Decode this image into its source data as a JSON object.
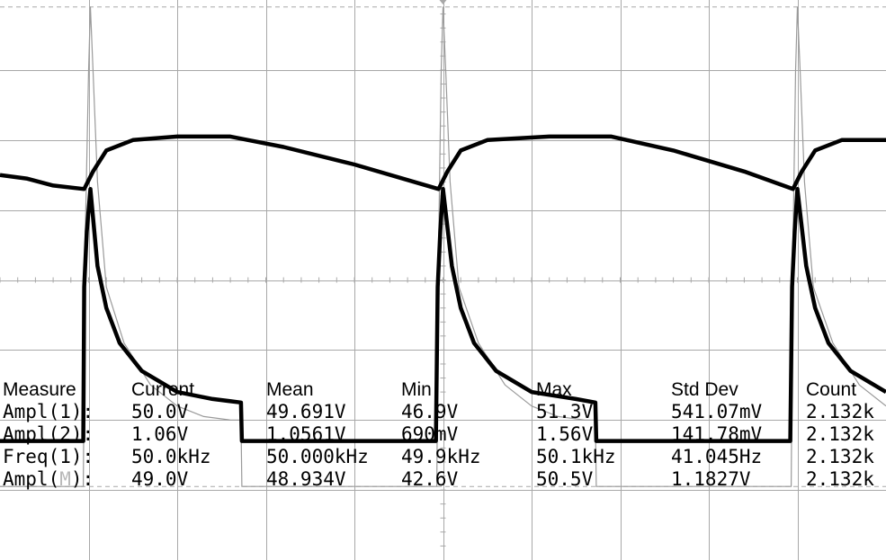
{
  "colors": {
    "background": "#ffffff",
    "grid": "#a8a8a8",
    "trace_primary": "#000000",
    "trace_math": "#9a9a9a",
    "measurement_text": "#000000",
    "math_channel_letter": "#b8b8b8"
  },
  "chart_data": {
    "type": "line",
    "title": "",
    "xlabel": "",
    "ylabel": "",
    "grid": true,
    "x_divisions": 10,
    "y_divisions": 8,
    "xlim": [
      0,
      10
    ],
    "ylim": [
      -4,
      4
    ],
    "x_unit": "div",
    "y_unit": "div",
    "series": [
      {
        "key": "upper",
        "x": [
          0,
          0.3,
          0.6,
          0.95,
          1.05,
          1.2,
          1.5,
          2.0,
          2.6,
          2.8,
          3.2,
          4.0,
          4.95,
          5.05,
          5.2,
          5.5,
          6.2,
          6.9,
          7.6,
          8.4,
          8.95,
          9.05,
          9.2,
          9.5,
          10.0
        ],
        "y": [
          1.5,
          1.45,
          1.35,
          1.3,
          1.55,
          1.85,
          2.0,
          2.05,
          2.05,
          2.0,
          1.9,
          1.65,
          1.3,
          1.55,
          1.85,
          2.0,
          2.05,
          2.05,
          1.85,
          1.55,
          1.3,
          1.55,
          1.85,
          2.0,
          2.0
        ]
      },
      {
        "key": "lower",
        "x": [
          0,
          0.5,
          0.94,
          0.95,
          0.98,
          1.02,
          1.1,
          1.2,
          1.35,
          1.6,
          2.0,
          2.4,
          2.72,
          2.73,
          3.2,
          4.0,
          4.92,
          4.94,
          4.97,
          5.0,
          5.1,
          5.2,
          5.35,
          5.6,
          6.0,
          6.5,
          6.72,
          6.73,
          7.2,
          8.0,
          8.92,
          8.94,
          8.97,
          9.0,
          9.1,
          9.2,
          9.35,
          9.6,
          10.0
        ],
        "y": [
          -2.3,
          -2.3,
          -2.3,
          -0.1,
          0.7,
          1.3,
          0.2,
          -0.4,
          -0.9,
          -1.3,
          -1.6,
          -1.7,
          -1.75,
          -2.3,
          -2.3,
          -2.3,
          -2.3,
          -0.1,
          0.7,
          1.3,
          0.2,
          -0.4,
          -0.9,
          -1.3,
          -1.6,
          -1.7,
          -1.75,
          -2.3,
          -2.3,
          -2.3,
          -2.3,
          -0.1,
          0.7,
          1.3,
          0.2,
          -0.4,
          -0.9,
          -1.3,
          -1.6
        ]
      },
      {
        "key": "math",
        "x": [
          0,
          0.5,
          0.94,
          0.96,
          1.0,
          1.02,
          1.05,
          1.1,
          1.2,
          1.4,
          1.7,
          2.0,
          2.3,
          2.6,
          2.72,
          2.73,
          3.3,
          4.0,
          4.93,
          4.95,
          4.98,
          5.0,
          5.03,
          5.08,
          5.18,
          5.4,
          5.7,
          6.0,
          6.3,
          6.6,
          6.72,
          6.73,
          7.3,
          8.0,
          8.93,
          8.95,
          8.98,
          9.0,
          9.03,
          9.08,
          9.18,
          9.4,
          9.7,
          10.0
        ],
        "y": [
          -2.95,
          -2.95,
          -2.95,
          0.5,
          3.0,
          3.9,
          3.0,
          1.4,
          -0.1,
          -0.9,
          -1.5,
          -1.8,
          -1.95,
          -2.0,
          -2.0,
          -2.95,
          -2.95,
          -2.95,
          -2.95,
          0.5,
          3.0,
          3.9,
          3.0,
          1.4,
          -0.1,
          -0.9,
          -1.5,
          -1.8,
          -1.95,
          -2.0,
          -2.0,
          -2.95,
          -2.95,
          -2.95,
          -2.95,
          0.5,
          3.0,
          3.9,
          3.0,
          1.4,
          -0.1,
          -0.9,
          -1.5,
          -1.8
        ]
      }
    ],
    "cursor_y": [
      3.9,
      -2.95
    ]
  },
  "measurements": {
    "header": {
      "label": "Measure",
      "current": "Current",
      "mean": "Mean",
      "min": "Min",
      "max": "Max",
      "std": "Std Dev",
      "count": "Count"
    },
    "rows": [
      {
        "pre": "Ampl(1",
        "mid": "",
        "post": "):",
        "current": "50.0V",
        "mean": "49.691V",
        "min": "46.9V",
        "max": "51.3V",
        "std": "541.07mV",
        "count": "2.132k"
      },
      {
        "pre": "Ampl(2",
        "mid": "",
        "post": "):",
        "current": "1.06V",
        "mean": "1.0561V",
        "min": "690mV",
        "max": "1.56V",
        "std": "141.78mV",
        "count": "2.132k"
      },
      {
        "pre": "Freq(1",
        "mid": "",
        "post": "):",
        "current": "50.0kHz",
        "mean": "50.000kHz",
        "min": "49.9kHz",
        "max": "50.1kHz",
        "std": "41.045Hz",
        "count": "2.132k"
      },
      {
        "pre": "Ampl(",
        "mid": "M",
        "post": "):",
        "current": "49.0V",
        "mean": "48.934V",
        "min": "42.6V",
        "max": "50.5V",
        "std": "1.1827V",
        "count": "2.132k"
      }
    ]
  }
}
